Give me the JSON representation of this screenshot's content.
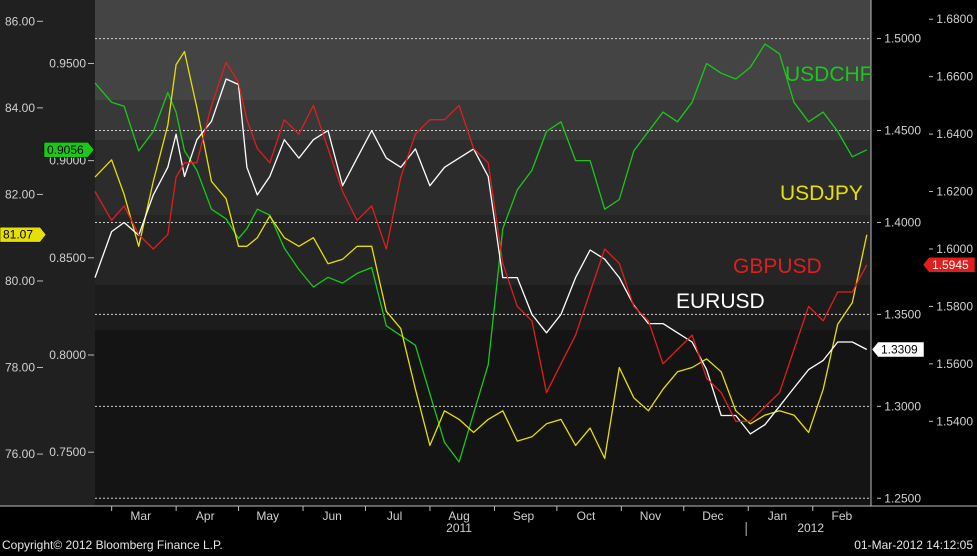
{
  "footer": {
    "copyright": "Copyright© 2012 Bloomberg Finance L.P.",
    "timestamp": "01-Mar-2012 14:12:05"
  },
  "chart_data": {
    "type": "line",
    "x": [
      "2011-02-21",
      "2011-03-01",
      "2011-03-07",
      "2011-03-14",
      "2011-03-21",
      "2011-03-28",
      "2011-04-01",
      "2011-04-05",
      "2011-04-11",
      "2011-04-18",
      "2011-04-25",
      "2011-05-01",
      "2011-05-05",
      "2011-05-10",
      "2011-05-16",
      "2011-05-23",
      "2011-05-30",
      "2011-06-06",
      "2011-06-13",
      "2011-06-20",
      "2011-06-27",
      "2011-07-04",
      "2011-07-11",
      "2011-07-18",
      "2011-07-25",
      "2011-08-01",
      "2011-08-08",
      "2011-08-15",
      "2011-08-22",
      "2011-08-29",
      "2011-09-05",
      "2011-09-12",
      "2011-09-19",
      "2011-09-26",
      "2011-10-03",
      "2011-10-10",
      "2011-10-17",
      "2011-10-24",
      "2011-10-31",
      "2011-11-07",
      "2011-11-14",
      "2011-11-21",
      "2011-11-28",
      "2011-12-05",
      "2011-12-12",
      "2011-12-19",
      "2011-12-26",
      "2012-01-02",
      "2012-01-09",
      "2012-01-16",
      "2012-01-23",
      "2012-01-30",
      "2012-02-06",
      "2012-02-13",
      "2012-02-20",
      "2012-02-27"
    ],
    "x_ticks": [
      {
        "date": "2011-03-01",
        "label": "Mar"
      },
      {
        "date": "2011-04-01",
        "label": "Apr"
      },
      {
        "date": "2011-05-01",
        "label": "May"
      },
      {
        "date": "2011-06-01",
        "label": "Jun"
      },
      {
        "date": "2011-07-01",
        "label": "Jul"
      },
      {
        "date": "2011-08-01",
        "label": "Aug"
      },
      {
        "date": "2011-09-01",
        "label": "Sep"
      },
      {
        "date": "2011-10-01",
        "label": "Oct"
      },
      {
        "date": "2011-11-01",
        "label": "Nov"
      },
      {
        "date": "2011-12-01",
        "label": "Dec"
      },
      {
        "date": "2012-01-01",
        "label": "Jan"
      },
      {
        "date": "2012-02-01",
        "label": "Feb"
      }
    ],
    "year_labels": [
      {
        "date": "2011-08-15",
        "label": "2011"
      },
      {
        "date": "2012-01-31",
        "label": "2012"
      }
    ],
    "year_divider": "2011-12-31",
    "axes": {
      "usdjpy": {
        "range": [
          74.8,
          86.4
        ],
        "ticks": [
          "86.00",
          "84.00",
          "82.00",
          "80.00",
          "78.00",
          "76.00"
        ]
      },
      "usdchf": {
        "range": [
          0.7223,
          0.9806
        ],
        "ticks": [
          "0.9500",
          "0.9000",
          "0.8500",
          "0.8000",
          "0.7500"
        ]
      },
      "eurusd": {
        "range": [
          1.2458,
          1.5188
        ],
        "ticks": [
          "1.5000",
          "1.4500",
          "1.4000",
          "1.3500",
          "1.3000",
          "1.2500"
        ]
      },
      "gbpusd": {
        "range": [
          1.5105,
          1.6853
        ],
        "ticks": [
          "1.6800",
          "1.6600",
          "1.6400",
          "1.6200",
          "1.6000",
          "1.5800",
          "1.5600",
          "1.5400"
        ]
      }
    },
    "grid": true,
    "series": [
      {
        "name": "USDCHF",
        "axis": "usdchf",
        "color": "#19c819",
        "values": [
          0.94,
          0.93,
          0.928,
          0.905,
          0.915,
          0.935,
          0.925,
          0.905,
          0.895,
          0.875,
          0.87,
          0.86,
          0.865,
          0.875,
          0.872,
          0.855,
          0.844,
          0.835,
          0.84,
          0.837,
          0.842,
          0.845,
          0.815,
          0.81,
          0.805,
          0.78,
          0.755,
          0.745,
          0.77,
          0.795,
          0.865,
          0.885,
          0.895,
          0.915,
          0.92,
          0.9,
          0.9,
          0.875,
          0.88,
          0.905,
          0.915,
          0.925,
          0.92,
          0.93,
          0.95,
          0.945,
          0.942,
          0.948,
          0.96,
          0.955,
          0.93,
          0.92,
          0.925,
          0.915,
          0.902,
          0.9056
        ]
      },
      {
        "name": "USDJPY",
        "axis": "usdjpy",
        "color": "#e6e000",
        "values": [
          82.4,
          82.8,
          82.0,
          80.8,
          82.3,
          83.6,
          85.0,
          85.3,
          84.0,
          82.3,
          81.9,
          80.8,
          80.8,
          81.0,
          81.5,
          81.0,
          80.8,
          81.0,
          80.4,
          80.5,
          80.8,
          80.8,
          79.3,
          78.9,
          77.5,
          76.2,
          77.0,
          76.8,
          76.5,
          76.8,
          77.0,
          76.3,
          76.4,
          76.7,
          76.8,
          76.2,
          76.6,
          75.9,
          78.0,
          77.3,
          77.0,
          77.5,
          77.9,
          78.0,
          78.2,
          77.9,
          77.0,
          76.7,
          76.9,
          77.0,
          76.9,
          76.5,
          77.5,
          79.0,
          79.5,
          81.07
        ]
      },
      {
        "name": "EURUSD",
        "axis": "eurusd",
        "color": "#ffffff",
        "values": [
          1.37,
          1.395,
          1.4,
          1.393,
          1.415,
          1.43,
          1.448,
          1.425,
          1.445,
          1.455,
          1.478,
          1.475,
          1.43,
          1.415,
          1.425,
          1.445,
          1.435,
          1.445,
          1.45,
          1.42,
          1.435,
          1.45,
          1.435,
          1.43,
          1.44,
          1.42,
          1.43,
          1.435,
          1.44,
          1.425,
          1.37,
          1.37,
          1.35,
          1.34,
          1.35,
          1.37,
          1.385,
          1.38,
          1.37,
          1.355,
          1.345,
          1.345,
          1.34,
          1.335,
          1.32,
          1.295,
          1.295,
          1.285,
          1.29,
          1.3,
          1.31,
          1.32,
          1.325,
          1.335,
          1.335,
          1.3309
        ]
      },
      {
        "name": "GBPUSD",
        "axis": "gbpusd",
        "color": "#e01e1e",
        "values": [
          1.62,
          1.61,
          1.615,
          1.605,
          1.6,
          1.605,
          1.625,
          1.63,
          1.63,
          1.65,
          1.665,
          1.658,
          1.645,
          1.635,
          1.63,
          1.645,
          1.64,
          1.65,
          1.635,
          1.62,
          1.61,
          1.615,
          1.6,
          1.625,
          1.64,
          1.645,
          1.645,
          1.65,
          1.635,
          1.63,
          1.595,
          1.58,
          1.575,
          1.55,
          1.56,
          1.57,
          1.585,
          1.6,
          1.595,
          1.58,
          1.575,
          1.56,
          1.565,
          1.57,
          1.555,
          1.55,
          1.54,
          1.54,
          1.545,
          1.55,
          1.565,
          1.58,
          1.575,
          1.585,
          1.585,
          1.5945
        ]
      }
    ],
    "series_labels": [
      {
        "text": "USDCHF",
        "color": "#19c819"
      },
      {
        "text": "USDJPY",
        "color": "#e6e000"
      },
      {
        "text": "GBPUSD",
        "color": "#e01e1e"
      },
      {
        "text": "EURUSD",
        "color": "#ffffff"
      }
    ],
    "last_value_tags": [
      {
        "series": "USDCHF",
        "text": "0.9056",
        "color": "#19c819",
        "text_color": "#000000"
      },
      {
        "series": "USDJPY",
        "text": "81.07",
        "color": "#e6e000",
        "text_color": "#000000"
      },
      {
        "series": "EURUSD",
        "text": "1.3309",
        "color": "#ffffff",
        "text_color": "#000000"
      },
      {
        "series": "GBPUSD",
        "text": "1.5945",
        "color": "#e01e1e",
        "text_color": "#ffffff"
      }
    ]
  }
}
